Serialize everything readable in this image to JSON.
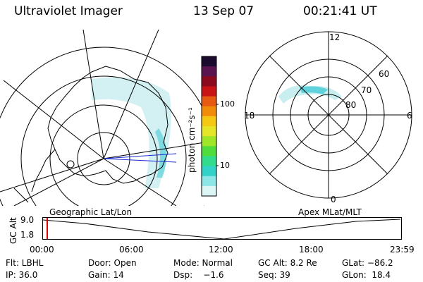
{
  "header": {
    "title": "Ultraviolet Imager",
    "date": "13 Sep 07",
    "time": "00:21:41 UT"
  },
  "maps": {
    "left_caption": "Geographic Lat/Lon",
    "right_caption": "Apex MLat/MLT",
    "mlt_labels": {
      "top": "12",
      "bottom": "0",
      "left": "18",
      "right": "6"
    },
    "lat_labels": [
      "60",
      "70",
      "80"
    ]
  },
  "colorbar": {
    "unit_label": "photon cm⁻²s⁻¹",
    "ticks": [
      "100",
      "10"
    ],
    "colors": [
      "#1a0a2e",
      "#5a1450",
      "#8c0a1e",
      "#c81414",
      "#e65a14",
      "#f08c0a",
      "#f5c814",
      "#e6e628",
      "#a0e628",
      "#50dc3c",
      "#32dc8c",
      "#32d2c8",
      "#8ce6e6",
      "#dcf5f5"
    ]
  },
  "timeline": {
    "y_axis_label": "GC Alt",
    "y_ticks": [
      "9.0",
      "1.8"
    ],
    "x_ticks": [
      "00:00",
      "06:00",
      "12:00",
      "18:00",
      "23:59"
    ],
    "marker_color": "#e00000"
  },
  "footer": {
    "row1": {
      "flt": "Flt: LBHL",
      "door": "Door: Open",
      "mode": "Mode: Normal",
      "gc_alt": "GC Alt: 8.2 Re",
      "glat": "GLat: −86.2"
    },
    "row2": {
      "ip": "IP: 36.0",
      "gain": "Gain: 14",
      "dsp": "Dsp:    −1.6",
      "seq": "Seq: 39",
      "glon": "GLon:  18.4"
    }
  }
}
